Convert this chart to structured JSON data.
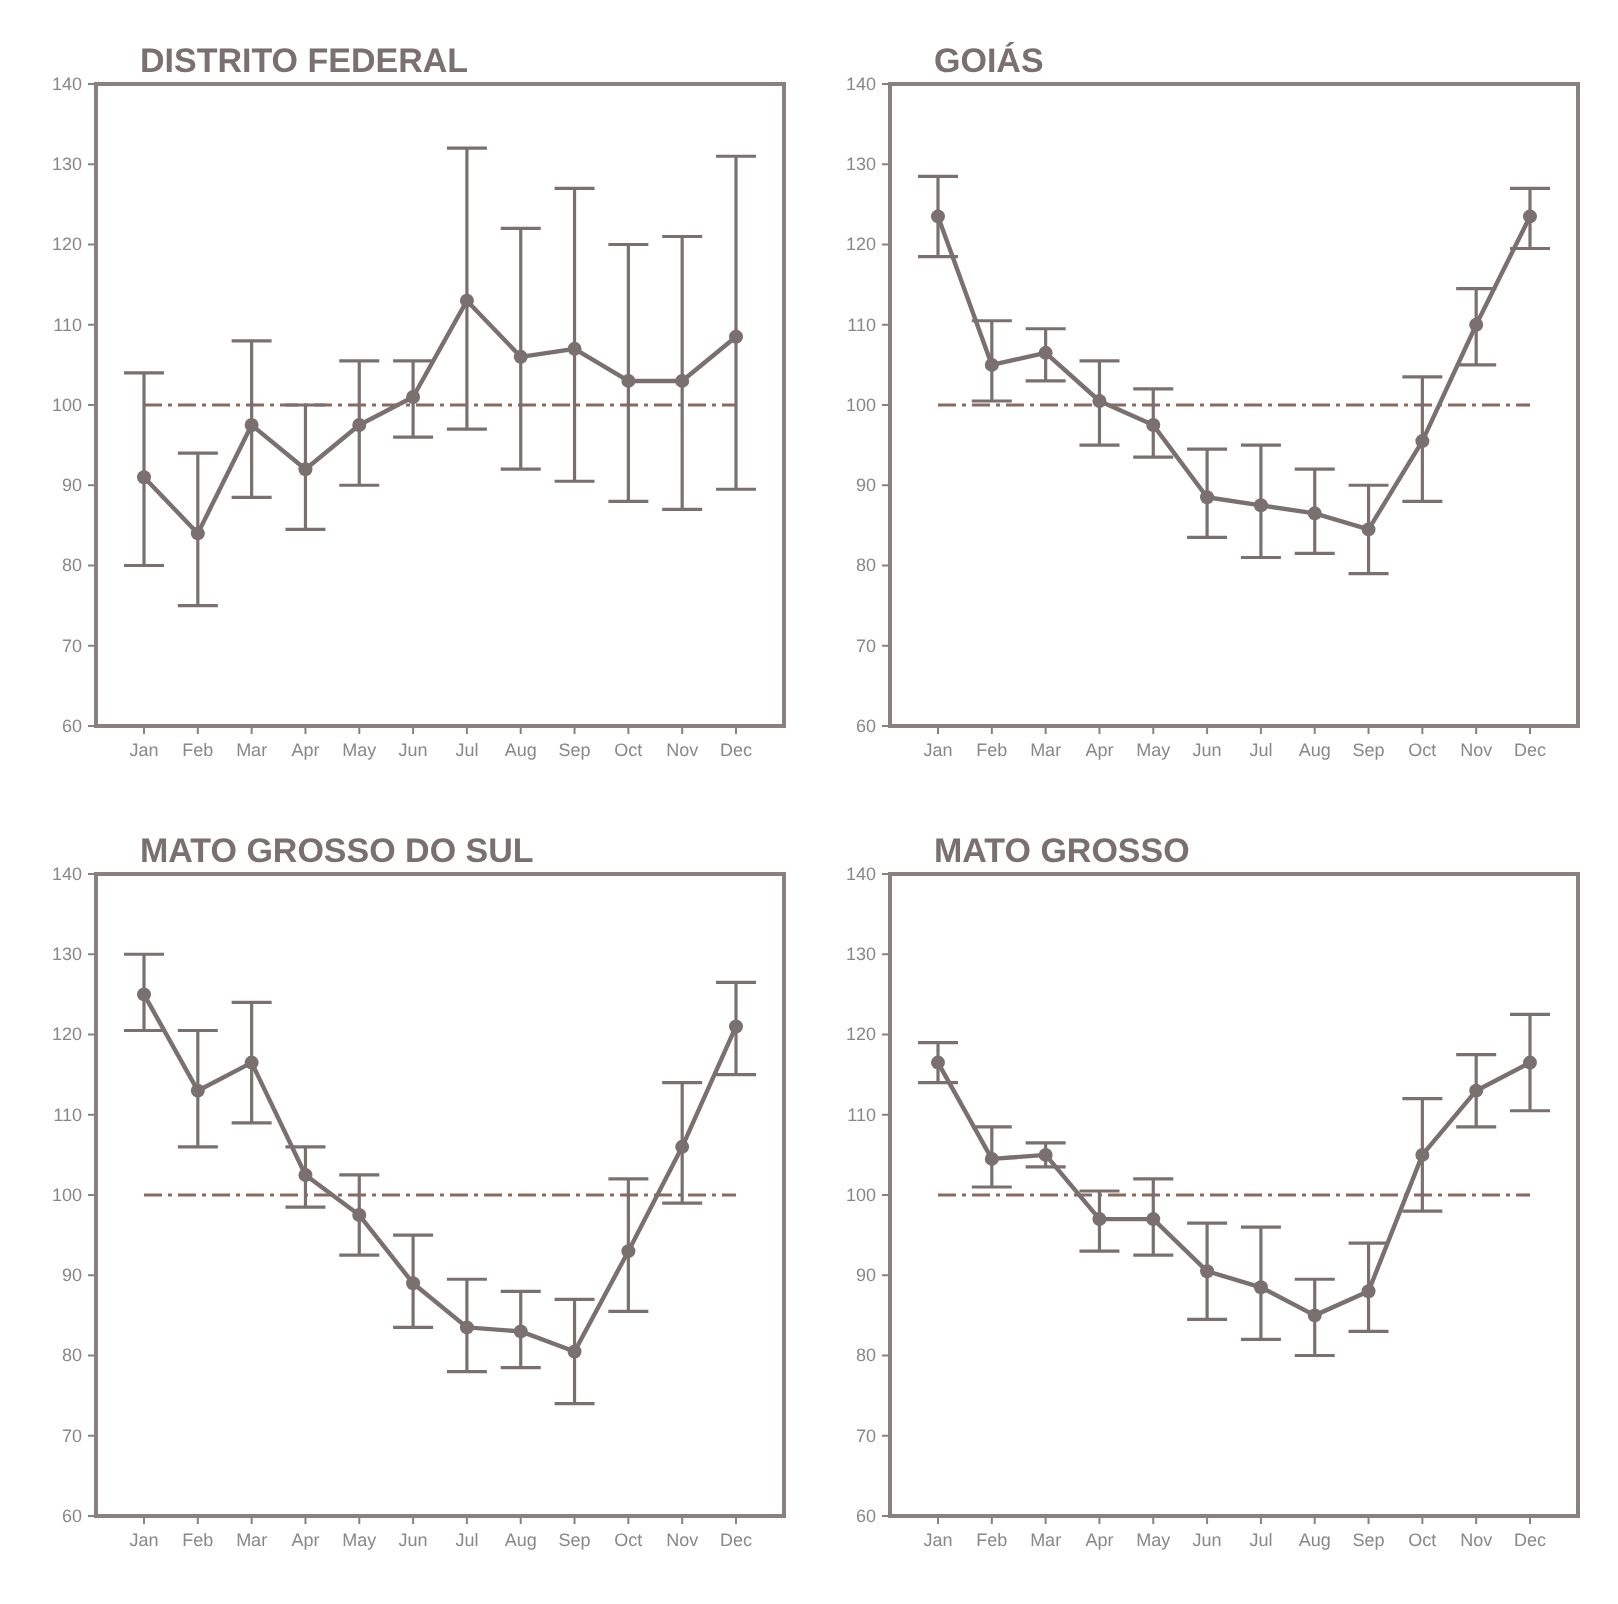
{
  "chart_data": [
    {
      "type": "line",
      "title": "DISTRITO FEDERAL",
      "categories": [
        "Jan",
        "Feb",
        "Mar",
        "Apr",
        "May",
        "Jun",
        "Jul",
        "Aug",
        "Sep",
        "Oct",
        "Nov",
        "Dec"
      ],
      "ylim": [
        60,
        140
      ],
      "yticks": [
        60,
        70,
        80,
        90,
        100,
        110,
        120,
        130,
        140
      ],
      "marker": "circle",
      "ref_lines": [
        {
          "axis": "y",
          "value": 100,
          "color": "#8a6a60",
          "line_style": "dashed"
        }
      ],
      "series": [
        {
          "color": "#7a7070",
          "values": [
            91,
            84,
            97.5,
            92,
            97.5,
            101,
            113,
            106,
            107,
            103,
            103,
            108.5
          ],
          "errors": [
            [
              80,
              104
            ],
            [
              75,
              94
            ],
            [
              88.5,
              108
            ],
            [
              84.5,
              100
            ],
            [
              90,
              105.5
            ],
            [
              96,
              105.5
            ],
            [
              97,
              132
            ],
            [
              92,
              122
            ],
            [
              90.5,
              127
            ],
            [
              88,
              120
            ],
            [
              87,
              121
            ],
            [
              89.5,
              131
            ]
          ]
        }
      ]
    },
    {
      "type": "line",
      "title": "GOIÁS",
      "categories": [
        "Jan",
        "Feb",
        "Mar",
        "Apr",
        "May",
        "Jun",
        "Jul",
        "Aug",
        "Sep",
        "Oct",
        "Nov",
        "Dec"
      ],
      "ylim": [
        60,
        140
      ],
      "yticks": [
        60,
        70,
        80,
        90,
        100,
        110,
        120,
        130,
        140
      ],
      "marker": "circle",
      "ref_lines": [
        {
          "axis": "y",
          "value": 100,
          "color": "#8a6a60",
          "line_style": "dashed"
        }
      ],
      "series": [
        {
          "color": "#7a7070",
          "values": [
            123.5,
            105,
            106.5,
            100.5,
            97.5,
            88.5,
            87.5,
            86.5,
            84.5,
            95.5,
            110,
            123.5
          ],
          "errors": [
            [
              118.5,
              128.5
            ],
            [
              100.5,
              110.5
            ],
            [
              103,
              109.5
            ],
            [
              95,
              105.5
            ],
            [
              93.5,
              102
            ],
            [
              83.5,
              94.5
            ],
            [
              81,
              95
            ],
            [
              81.5,
              92
            ],
            [
              79,
              90
            ],
            [
              88,
              103.5
            ],
            [
              105,
              114.5
            ],
            [
              119.5,
              127
            ]
          ]
        }
      ]
    },
    {
      "type": "line",
      "title": "MATO GROSSO DO SUL",
      "categories": [
        "Jan",
        "Feb",
        "Mar",
        "Apr",
        "May",
        "Jun",
        "Jul",
        "Aug",
        "Sep",
        "Oct",
        "Nov",
        "Dec"
      ],
      "ylim": [
        60,
        140
      ],
      "yticks": [
        60,
        70,
        80,
        90,
        100,
        110,
        120,
        130,
        140
      ],
      "marker": "circle",
      "ref_lines": [
        {
          "axis": "y",
          "value": 100,
          "color": "#8a6a60",
          "line_style": "dashed"
        }
      ],
      "series": [
        {
          "color": "#7a7070",
          "values": [
            125,
            113,
            116.5,
            102.5,
            97.5,
            89,
            83.5,
            83,
            80.5,
            93,
            106,
            121
          ],
          "errors": [
            [
              120.5,
              130
            ],
            [
              106,
              120.5
            ],
            [
              109,
              124
            ],
            [
              98.5,
              106
            ],
            [
              92.5,
              102.5
            ],
            [
              83.5,
              95
            ],
            [
              78,
              89.5
            ],
            [
              78.5,
              88
            ],
            [
              74,
              87
            ],
            [
              85.5,
              102
            ],
            [
              99,
              114
            ],
            [
              115,
              126.5
            ]
          ]
        }
      ]
    },
    {
      "type": "line",
      "title": "MATO GROSSO",
      "categories": [
        "Jan",
        "Feb",
        "Mar",
        "Apr",
        "May",
        "Jun",
        "Jul",
        "Aug",
        "Sep",
        "Oct",
        "Nov",
        "Dec"
      ],
      "ylim": [
        60,
        140
      ],
      "yticks": [
        60,
        70,
        80,
        90,
        100,
        110,
        120,
        130,
        140
      ],
      "marker": "circle",
      "ref_lines": [
        {
          "axis": "y",
          "value": 100,
          "color": "#8a6a60",
          "line_style": "dashed"
        }
      ],
      "series": [
        {
          "color": "#7a7070",
          "values": [
            116.5,
            104.5,
            105,
            97,
            97,
            90.5,
            88.5,
            85,
            88,
            105,
            113,
            116.5
          ],
          "errors": [
            [
              114,
              119
            ],
            [
              101,
              108.5
            ],
            [
              103.5,
              106.5
            ],
            [
              93,
              100.5
            ],
            [
              92.5,
              102
            ],
            [
              84.5,
              96.5
            ],
            [
              82,
              96
            ],
            [
              80,
              89.5
            ],
            [
              83,
              94
            ],
            [
              98,
              112
            ],
            [
              108.5,
              117.5
            ],
            [
              110.5,
              122.5
            ]
          ]
        }
      ]
    }
  ]
}
